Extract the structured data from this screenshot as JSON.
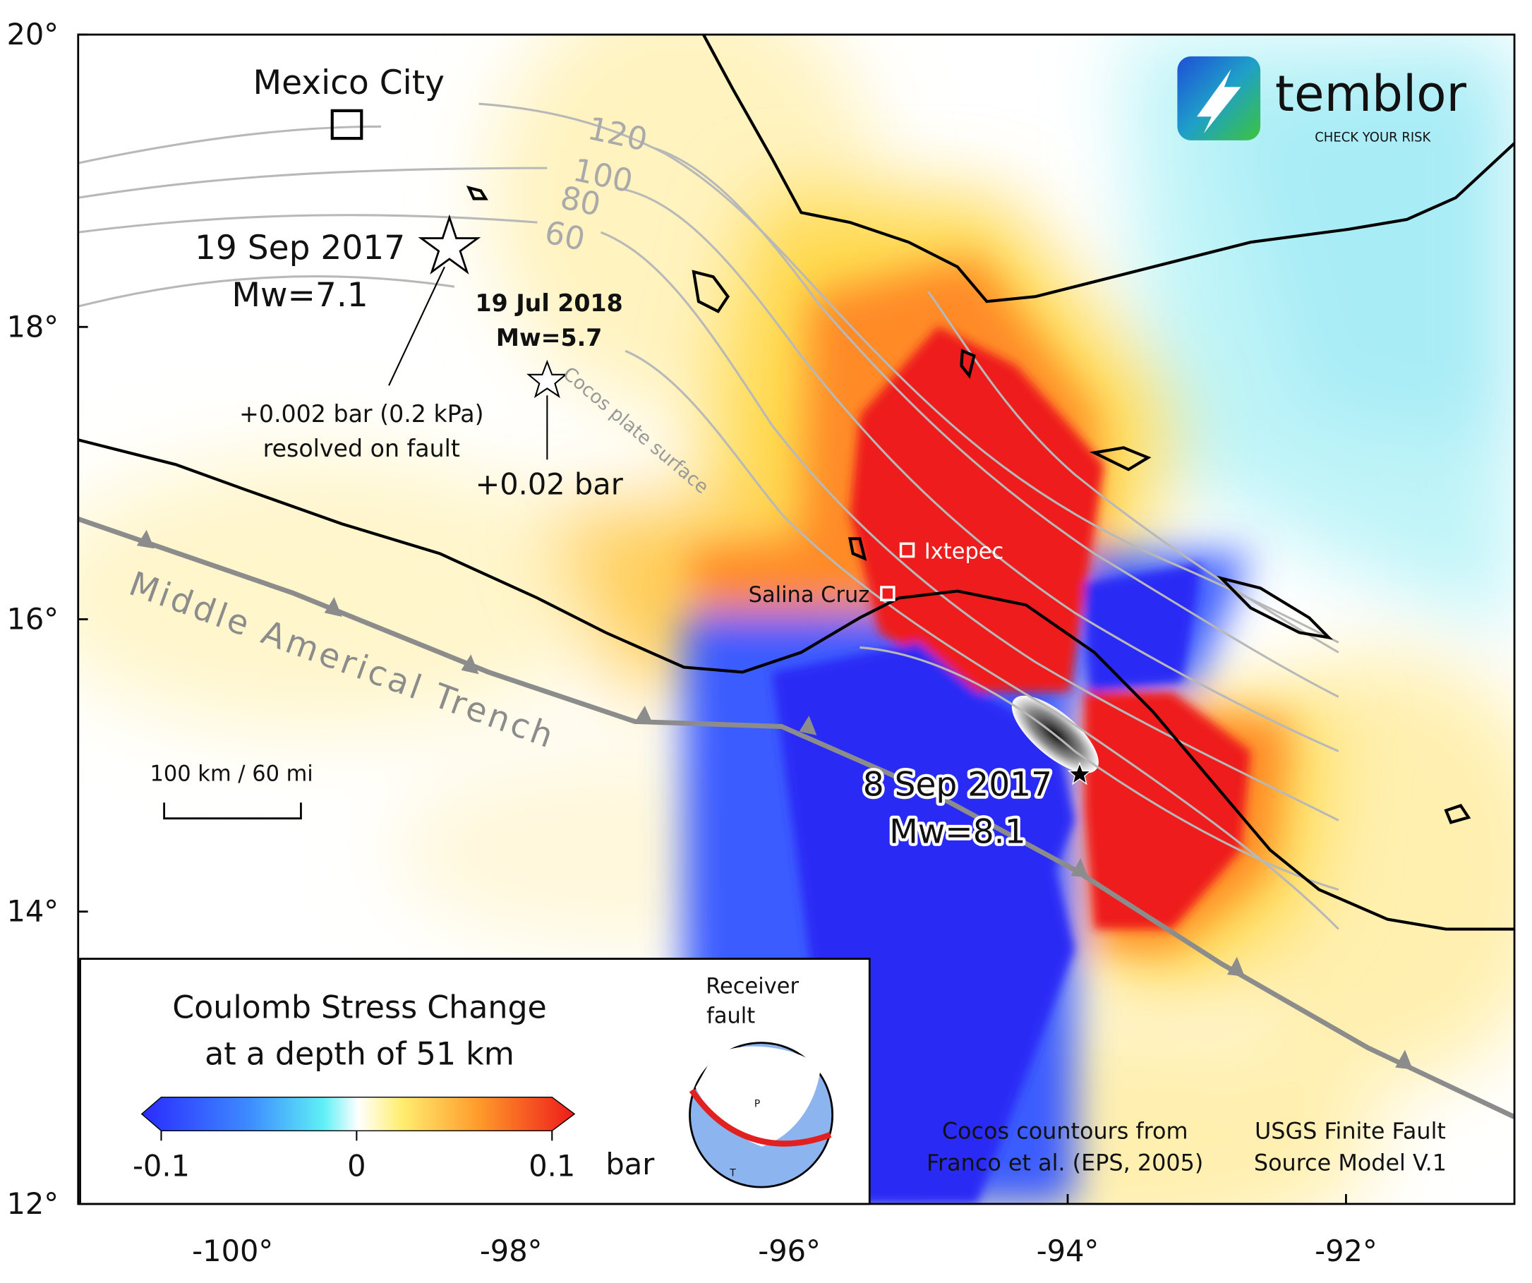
{
  "map": {
    "xlim": [
      -101.11,
      -90.79
    ],
    "ylim": [
      12,
      20
    ],
    "xticks": [
      {
        "value": -100,
        "label": "-100°"
      },
      {
        "value": -98,
        "label": "-98°"
      },
      {
        "value": -96,
        "label": "-96°"
      },
      {
        "value": -94,
        "label": "-94°"
      },
      {
        "value": -92,
        "label": "-92°"
      }
    ],
    "yticks": [
      {
        "value": 20,
        "label": "20°"
      },
      {
        "value": 18,
        "label": "18°"
      },
      {
        "value": 16,
        "label": "16°"
      },
      {
        "value": 14,
        "label": "14°"
      },
      {
        "value": 12,
        "label": "12°"
      }
    ]
  },
  "places": [
    "Mexico City",
    "Ixtepec",
    "Salina Cruz"
  ],
  "events": [
    {
      "date": "19 Sep 2017",
      "magnitude": "Mw=7.1",
      "note": [
        "+0.002 bar (0.2 kPa)",
        "resolved on fault"
      ]
    },
    {
      "date": "19 Jul 2018",
      "magnitude": "Mw=5.7",
      "note": [
        "+0.02 bar"
      ]
    },
    {
      "date": "8 Sep 2017",
      "magnitude": "Mw=8.1"
    }
  ],
  "features": [
    "Middle Americal Trench",
    "Cocos plate surface"
  ],
  "contour_labels": [
    120,
    100,
    80,
    60
  ],
  "scale_bar": "100 km / 60 mi",
  "legend": {
    "title": [
      "Coulomb Stress Change",
      "at a depth of 51 km"
    ],
    "colorbar": {
      "lim": [
        -0.1,
        0.1
      ],
      "ticks": [
        -0.1,
        0,
        0.1
      ],
      "unit": "bar"
    },
    "receiver": [
      "Receiver",
      "fault"
    ],
    "axes": [
      "P",
      "T"
    ]
  },
  "credits": [
    [
      "Cocos countours from",
      "Franco et al. (EPS, 2005)"
    ],
    [
      "USGS Finite Fault",
      "Source Model V.1"
    ]
  ],
  "logo": {
    "name": "temblor",
    "tagline": "CHECK YOUR RISK"
  }
}
